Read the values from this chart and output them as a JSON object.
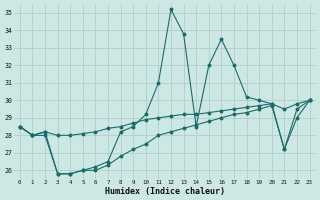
{
  "xlabel": "Humidex (Indice chaleur)",
  "background_color": "#cde8e4",
  "grid_color": "#b0ceca",
  "line_color": "#1a6b6b",
  "x": [
    0,
    1,
    2,
    3,
    4,
    5,
    6,
    7,
    8,
    9,
    10,
    11,
    12,
    13,
    14,
    15,
    16,
    17,
    18,
    19,
    20,
    21,
    22,
    23
  ],
  "y_top": [
    28.5,
    28.0,
    28.2,
    25.8,
    25.8,
    26.0,
    26.2,
    26.5,
    28.2,
    28.5,
    29.2,
    31.0,
    35.2,
    33.8,
    28.5,
    32.0,
    33.5,
    32.0,
    30.2,
    30.0,
    29.8,
    27.2,
    29.5,
    30.0
  ],
  "y_mid": [
    28.5,
    28.0,
    28.2,
    28.0,
    28.0,
    28.1,
    28.2,
    28.4,
    28.5,
    28.7,
    28.9,
    29.0,
    29.1,
    29.2,
    29.2,
    29.3,
    29.4,
    29.5,
    29.6,
    29.7,
    29.8,
    29.5,
    29.8,
    30.0
  ],
  "y_bot": [
    28.5,
    28.0,
    28.0,
    25.8,
    25.8,
    26.0,
    26.0,
    26.3,
    26.8,
    27.2,
    27.5,
    28.0,
    28.2,
    28.4,
    28.6,
    28.8,
    29.0,
    29.2,
    29.3,
    29.5,
    29.7,
    27.2,
    29.0,
    30.0
  ],
  "ylim": [
    25.5,
    35.5
  ],
  "yticks": [
    26,
    27,
    28,
    29,
    30,
    31,
    32,
    33,
    34,
    35
  ],
  "xlim": [
    -0.5,
    23.5
  ],
  "xticks": [
    0,
    1,
    2,
    3,
    4,
    5,
    6,
    7,
    8,
    9,
    10,
    11,
    12,
    13,
    14,
    15,
    16,
    17,
    18,
    19,
    20,
    21,
    22,
    23
  ]
}
